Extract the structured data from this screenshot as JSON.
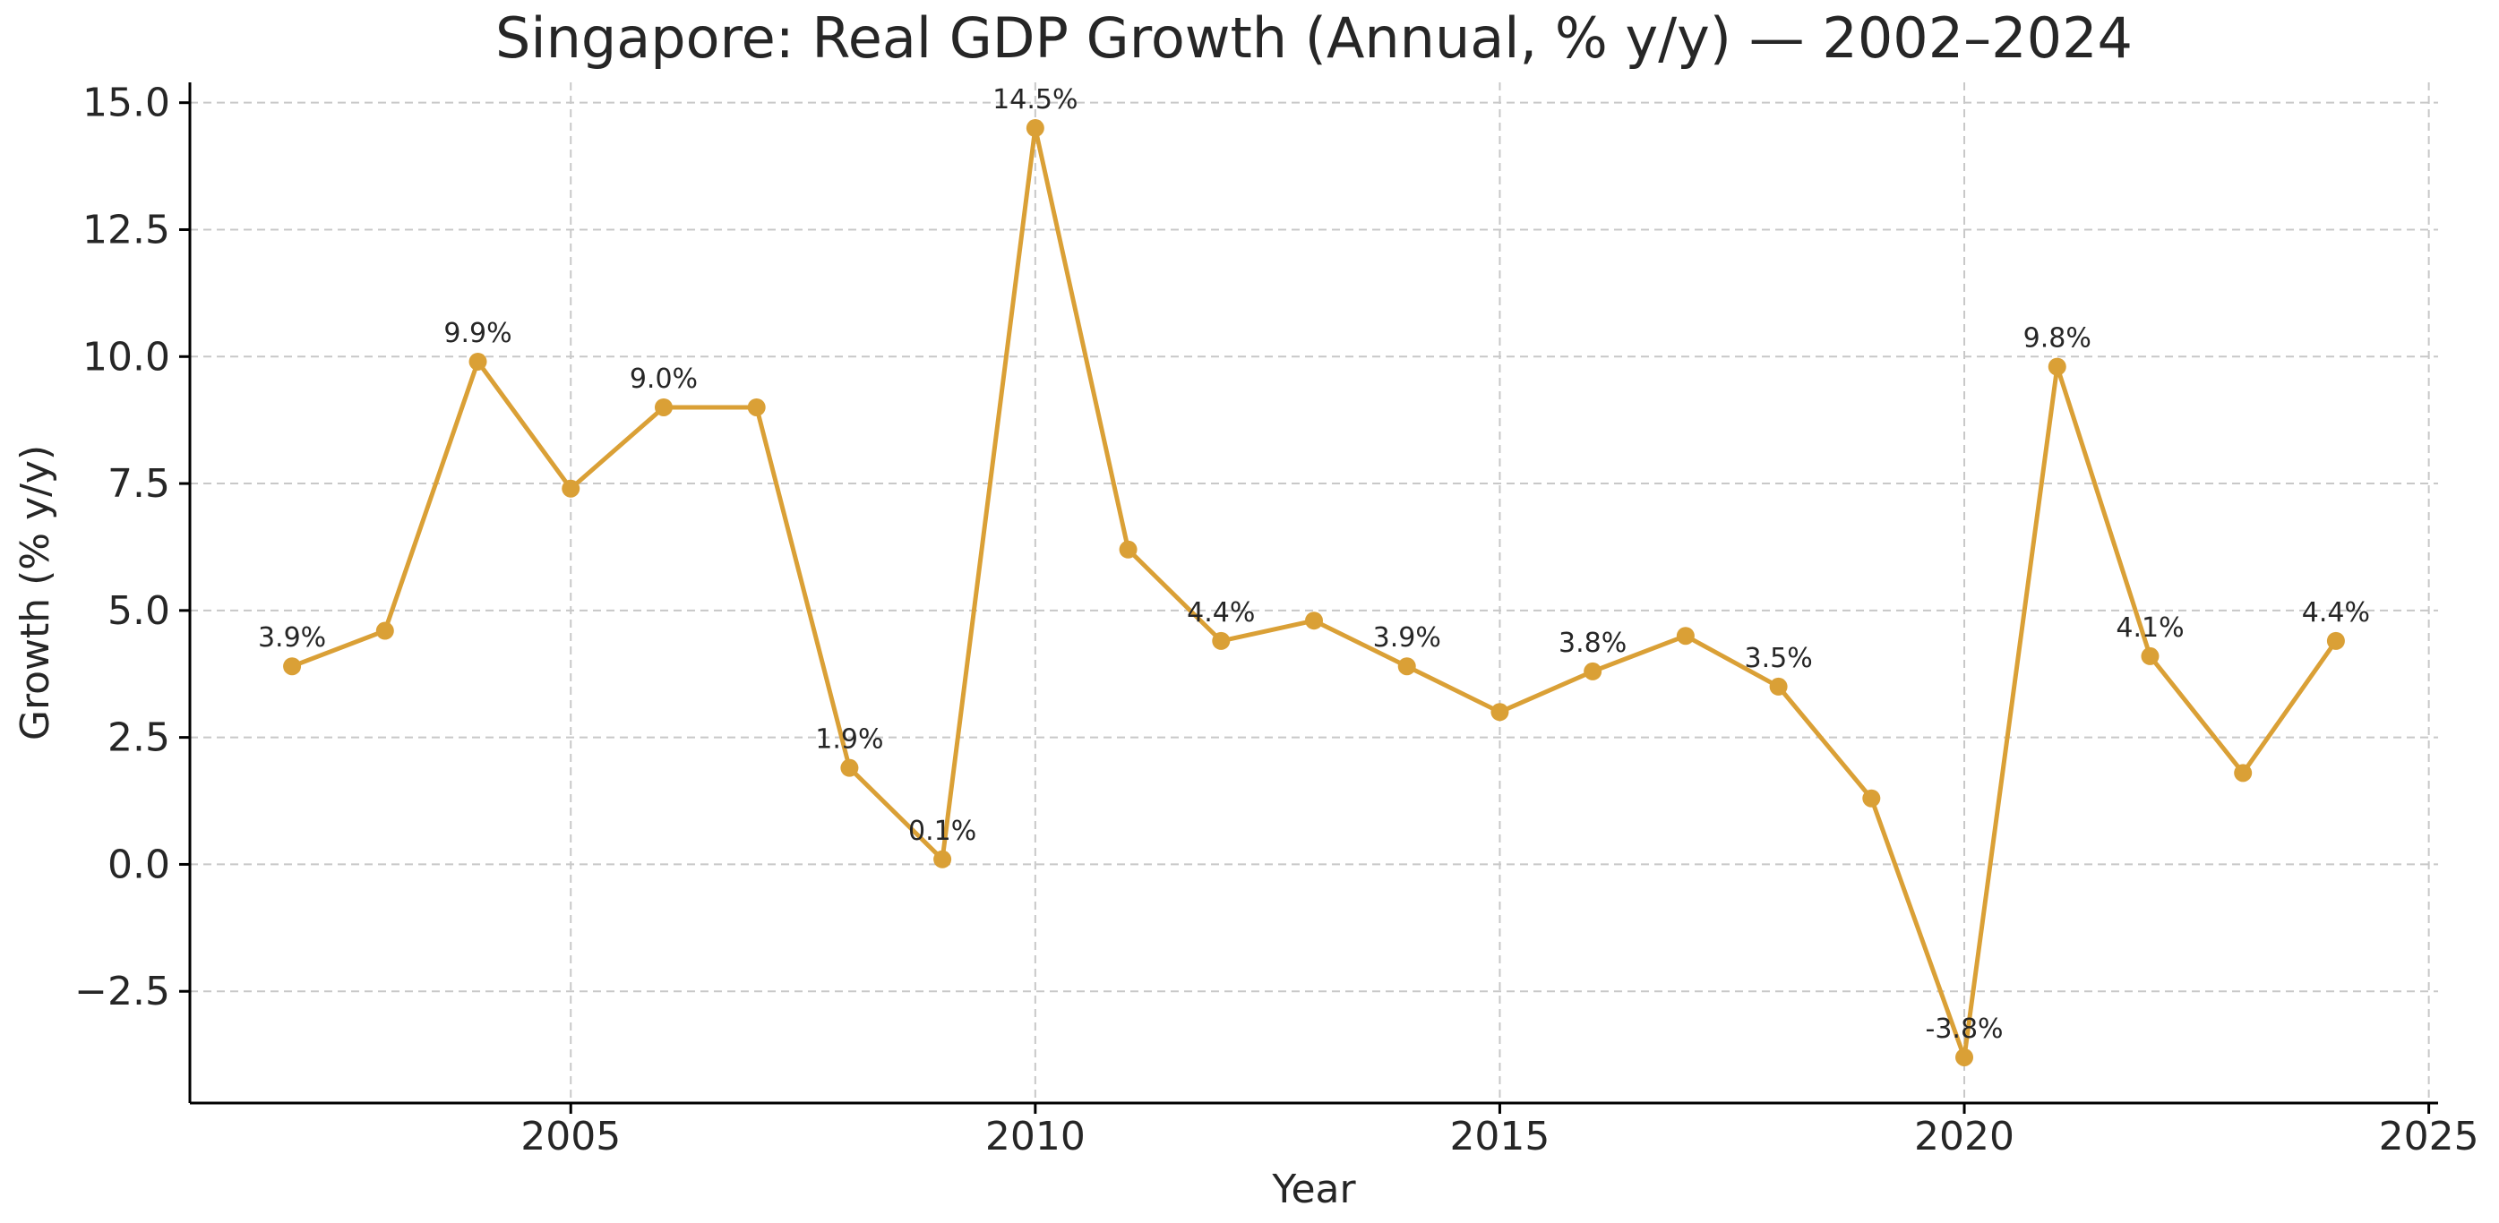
{
  "chart_data": {
    "type": "line",
    "title": "Singapore: Real GDP Growth (Annual, % y/y) — 2002–2024",
    "xlabel": "Year",
    "ylabel": "Growth (% y/y)",
    "xlim": [
      2000.9,
      2025.1
    ],
    "ylim": [
      -4.7,
      15.4
    ],
    "x_ticks": [
      2005,
      2010,
      2015,
      2020,
      2025
    ],
    "y_ticks": [
      -2.5,
      0.0,
      2.5,
      5.0,
      7.5,
      10.0,
      12.5,
      15.0
    ],
    "y_tick_labels": [
      "−2.5",
      "0.0",
      "2.5",
      "5.0",
      "7.5",
      "10.0",
      "12.5",
      "15.0"
    ],
    "grid": true,
    "series": [
      {
        "name": "Real GDP Growth",
        "color": "#DAA036",
        "x": [
          2002,
          2003,
          2004,
          2005,
          2006,
          2007,
          2008,
          2009,
          2010,
          2011,
          2012,
          2013,
          2014,
          2015,
          2016,
          2017,
          2018,
          2019,
          2020,
          2021,
          2022,
          2023,
          2024
        ],
        "values": [
          3.9,
          4.6,
          9.9,
          7.4,
          9.0,
          9.0,
          1.9,
          0.1,
          14.5,
          6.2,
          4.4,
          4.8,
          3.9,
          3.0,
          3.8,
          4.5,
          3.5,
          1.3,
          -3.8,
          9.8,
          4.1,
          1.8,
          4.4
        ]
      }
    ],
    "annotations": [
      {
        "x": 2002,
        "y": 3.9,
        "text": "3.9%"
      },
      {
        "x": 2004,
        "y": 9.9,
        "text": "9.9%"
      },
      {
        "x": 2006,
        "y": 9.0,
        "text": "9.0%"
      },
      {
        "x": 2008,
        "y": 1.9,
        "text": "1.9%"
      },
      {
        "x": 2009,
        "y": 0.1,
        "text": "0.1%"
      },
      {
        "x": 2010,
        "y": 14.5,
        "text": "14.5%"
      },
      {
        "x": 2012,
        "y": 4.4,
        "text": "4.4%"
      },
      {
        "x": 2014,
        "y": 3.9,
        "text": "3.9%"
      },
      {
        "x": 2016,
        "y": 3.8,
        "text": "3.8%"
      },
      {
        "x": 2018,
        "y": 3.5,
        "text": "3.5%"
      },
      {
        "x": 2020,
        "y": -3.8,
        "text": "-3.8%"
      },
      {
        "x": 2021,
        "y": 9.8,
        "text": "9.8%"
      },
      {
        "x": 2022,
        "y": 4.1,
        "text": "4.1%"
      },
      {
        "x": 2024,
        "y": 4.4,
        "text": "4.4%"
      }
    ]
  }
}
